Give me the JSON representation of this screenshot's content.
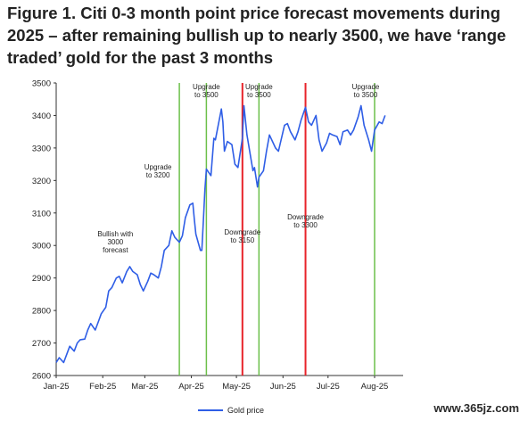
{
  "title": "Figure 1. Citi 0-3 month point price forecast movements during 2025 – after remaining bullish up to nearly 3500, we have ‘range traded’ gold for the past 3 months",
  "watermark": "www.365jz.com",
  "colors": {
    "line": "#2f5ee6",
    "upgrade": "#6cc04a",
    "downgrade": "#e8232a",
    "axis": "#333333"
  },
  "chart_data": {
    "type": "line",
    "title": "Figure 1. Citi 0-3 month point price forecast movements during 2025 – after remaining bullish up to nearly 3500, we have ‘range traded’ gold for the past 3 months",
    "xlabel": "",
    "ylabel": "",
    "ylim": [
      2600,
      3500
    ],
    "yticks": [
      2600,
      2700,
      2800,
      2900,
      3000,
      3100,
      3200,
      3300,
      3400,
      3500
    ],
    "xlim": [
      "2025-01-01",
      "2025-08-20"
    ],
    "xticks": [
      {
        "date": "2025-01-01",
        "label": "Jan-25"
      },
      {
        "date": "2025-02-01",
        "label": "Feb-25"
      },
      {
        "date": "2025-03-01",
        "label": "Mar-25"
      },
      {
        "date": "2025-04-01",
        "label": "Apr-25"
      },
      {
        "date": "2025-05-01",
        "label": "May-25"
      },
      {
        "date": "2025-06-01",
        "label": "Jun-25"
      },
      {
        "date": "2025-07-01",
        "label": "Jul-25"
      },
      {
        "date": "2025-08-01",
        "label": "Aug-25"
      }
    ],
    "grid": false,
    "legend": "bottom-center",
    "series": [
      {
        "name": "Gold price",
        "x": [
          "2025-01-01",
          "2025-01-03",
          "2025-01-06",
          "2025-01-08",
          "2025-01-10",
          "2025-01-13",
          "2025-01-15",
          "2025-01-17",
          "2025-01-20",
          "2025-01-22",
          "2025-01-24",
          "2025-01-27",
          "2025-01-29",
          "2025-01-31",
          "2025-02-03",
          "2025-02-05",
          "2025-02-07",
          "2025-02-10",
          "2025-02-12",
          "2025-02-14",
          "2025-02-17",
          "2025-02-19",
          "2025-02-21",
          "2025-02-24",
          "2025-02-26",
          "2025-02-28",
          "2025-03-03",
          "2025-03-05",
          "2025-03-07",
          "2025-03-10",
          "2025-03-12",
          "2025-03-14",
          "2025-03-17",
          "2025-03-19",
          "2025-03-21",
          "2025-03-24",
          "2025-03-26",
          "2025-03-28",
          "2025-03-31",
          "2025-04-02",
          "2025-04-03",
          "2025-04-04",
          "2025-04-07",
          "2025-04-08",
          "2025-04-09",
          "2025-04-10",
          "2025-04-11",
          "2025-04-14",
          "2025-04-16",
          "2025-04-17",
          "2025-04-21",
          "2025-04-22",
          "2025-04-23",
          "2025-04-25",
          "2025-04-28",
          "2025-04-30",
          "2025-05-02",
          "2025-05-05",
          "2025-05-06",
          "2025-05-08",
          "2025-05-12",
          "2025-05-13",
          "2025-05-15",
          "2025-05-16",
          "2025-05-19",
          "2025-05-21",
          "2025-05-23",
          "2025-05-27",
          "2025-05-29",
          "2025-06-02",
          "2025-06-04",
          "2025-06-06",
          "2025-06-09",
          "2025-06-11",
          "2025-06-13",
          "2025-06-16",
          "2025-06-18",
          "2025-06-20",
          "2025-06-23",
          "2025-06-25",
          "2025-06-27",
          "2025-06-30",
          "2025-07-02",
          "2025-07-04",
          "2025-07-07",
          "2025-07-09",
          "2025-07-11",
          "2025-07-14",
          "2025-07-16",
          "2025-07-18",
          "2025-07-21",
          "2025-07-23",
          "2025-07-25",
          "2025-07-28",
          "2025-07-30",
          "2025-08-01",
          "2025-08-04",
          "2025-08-06",
          "2025-08-08"
        ],
        "values": [
          2640,
          2655,
          2640,
          2665,
          2690,
          2675,
          2700,
          2710,
          2712,
          2740,
          2760,
          2740,
          2765,
          2790,
          2810,
          2860,
          2870,
          2900,
          2905,
          2885,
          2920,
          2935,
          2920,
          2910,
          2880,
          2860,
          2890,
          2915,
          2910,
          2900,
          2935,
          2985,
          3000,
          3045,
          3025,
          3010,
          3030,
          3085,
          3125,
          3130,
          3080,
          3035,
          2985,
          2985,
          3075,
          3170,
          3235,
          3215,
          3330,
          3325,
          3420,
          3380,
          3290,
          3320,
          3310,
          3250,
          3240,
          3330,
          3430,
          3340,
          3230,
          3240,
          3180,
          3210,
          3230,
          3290,
          3340,
          3300,
          3290,
          3370,
          3375,
          3350,
          3325,
          3350,
          3385,
          3425,
          3380,
          3370,
          3400,
          3325,
          3290,
          3315,
          3345,
          3340,
          3335,
          3310,
          3350,
          3355,
          3340,
          3355,
          3395,
          3430,
          3370,
          3325,
          3290,
          3355,
          3380,
          3375,
          3400
        ]
      }
    ],
    "events": [
      {
        "date": "2025-03-24",
        "type": "upgrade",
        "label": "Upgrade to 3200"
      },
      {
        "date": "2025-04-11",
        "type": "upgrade",
        "label": "Upgrade to 3500"
      },
      {
        "date": "2025-05-05",
        "type": "downgrade",
        "label": "Downgrade to 3150"
      },
      {
        "date": "2025-05-16",
        "type": "upgrade",
        "label": "Upgrade to 3500"
      },
      {
        "date": "2025-06-16",
        "type": "downgrade",
        "label": "Downgrade to 3300"
      },
      {
        "date": "2025-08-01",
        "type": "upgrade",
        "label": "Upgrade to 3500"
      }
    ],
    "annotations": [
      {
        "date": "2025-02-10",
        "value": 3000,
        "label": "Bullish with 3000 forecast"
      }
    ]
  }
}
